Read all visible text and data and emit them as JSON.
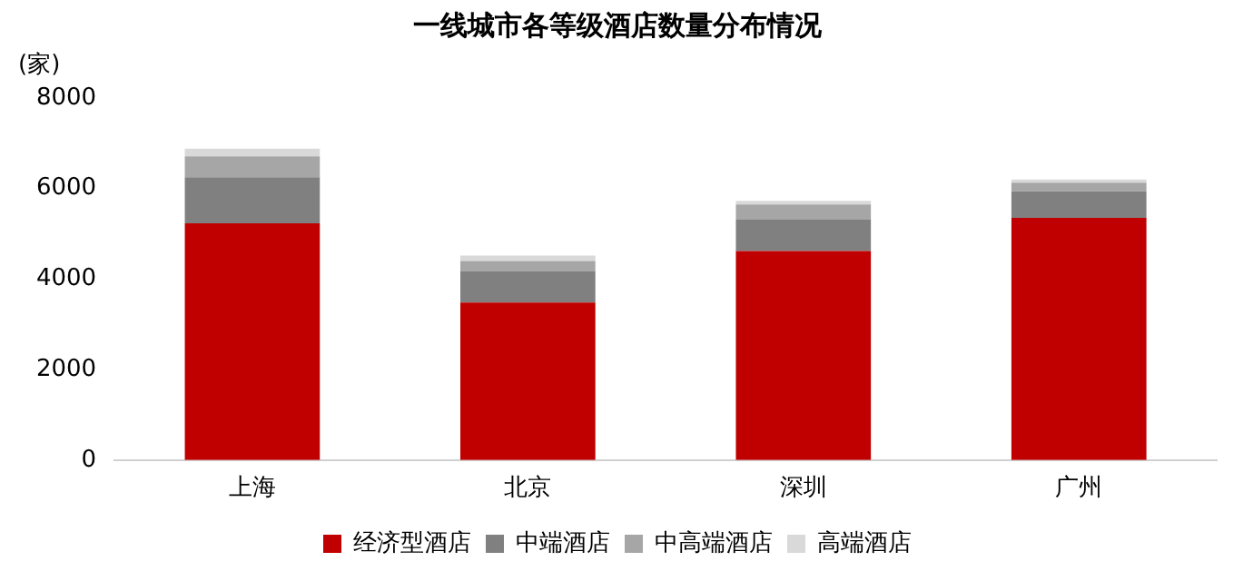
{
  "chart_data": {
    "type": "bar",
    "title": "一线城市各等级酒店数量分布情况",
    "ylabel": "(家)",
    "categories": [
      "上海",
      "北京",
      "深圳",
      "广州"
    ],
    "stacked": true,
    "ylim": [
      0,
      8000
    ],
    "yticks": [
      0,
      2000,
      4000,
      6000,
      8000
    ],
    "grid": false,
    "legend": "bottom",
    "series": [
      {
        "name": "经济型酒店",
        "color": "#c00000",
        "values": [
          5230,
          3480,
          4620,
          5350
        ]
      },
      {
        "name": "中端酒店",
        "color": "#808080",
        "values": [
          1020,
          700,
          690,
          590
        ]
      },
      {
        "name": "中高端酒店",
        "color": "#a6a6a6",
        "values": [
          460,
          220,
          340,
          190
        ]
      },
      {
        "name": "高端酒店",
        "color": "#d9d9d9",
        "values": [
          170,
          120,
          80,
          70
        ]
      }
    ]
  }
}
